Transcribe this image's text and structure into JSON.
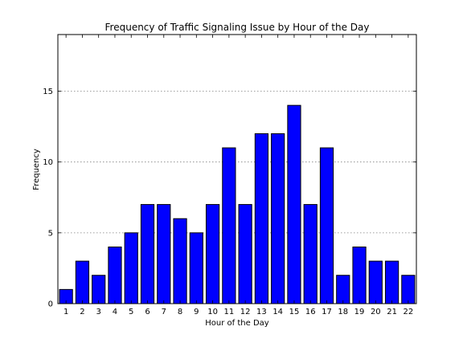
{
  "chart_data": {
    "type": "bar",
    "title": "Frequency of Traffic Signaling Issue by Hour of the Day",
    "xlabel": "Hour of the Day",
    "ylabel": "Frequency",
    "categories": [
      "1",
      "2",
      "3",
      "4",
      "5",
      "6",
      "7",
      "8",
      "9",
      "10",
      "11",
      "12",
      "13",
      "14",
      "15",
      "16",
      "17",
      "18",
      "19",
      "20",
      "21",
      "22"
    ],
    "values": [
      1,
      3,
      2,
      4,
      5,
      7,
      7,
      6,
      5,
      7,
      11,
      7,
      12,
      12,
      14,
      7,
      11,
      2,
      4,
      3,
      3,
      2
    ],
    "ylim": [
      0,
      19
    ],
    "yticks": [
      0,
      5,
      10,
      15
    ],
    "ytick_labels": [
      "0",
      "5",
      "10",
      "15"
    ],
    "grid": "horizontal",
    "bar_color": "#0000ff"
  }
}
